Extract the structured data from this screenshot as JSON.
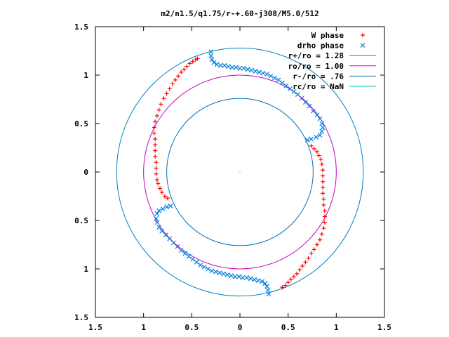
{
  "chart_data": {
    "type": "scatter",
    "title": "m2/n1.5/q1.75/r-+.60-j308/M5.0/512",
    "xlabel": "",
    "ylabel": "",
    "xlim": [
      -1.5,
      1.5
    ],
    "ylim": [
      -1.5,
      1.5
    ],
    "xticks": [
      -1.5,
      -1,
      -0.5,
      0,
      0.5,
      1,
      1.5
    ],
    "xtick_labels": [
      "1.5",
      "1",
      "0.5",
      "0",
      "0.5",
      "1",
      "1.5"
    ],
    "yticks": [
      1.5,
      1,
      0.5,
      0,
      -0.5,
      -1,
      -1.5
    ],
    "ytick_labels": [
      "1.5",
      "1",
      "0.5",
      "0",
      "0.5",
      "1",
      "1.5"
    ],
    "grid": false,
    "legend_position": "top-right",
    "legend": [
      {
        "label": "W phase",
        "kind": "plus",
        "color": "#ff0000"
      },
      {
        "label": "drho phase",
        "kind": "cross",
        "color": "#0080e0"
      },
      {
        "label": "r+/ro = 1.28",
        "kind": "line",
        "color": "#0080c0"
      },
      {
        "label": "ro/ro = 1.00",
        "kind": "line",
        "color": "#c000c0"
      },
      {
        "label": "r-/ro = .76",
        "kind": "line",
        "color": "#0070c0"
      },
      {
        "label": "rc/ro = NaN",
        "kind": "line",
        "color": "#00c0c0"
      }
    ],
    "circles": [
      {
        "name": "r+/ro = 1.28",
        "radius": 1.28,
        "color": "#0080c0"
      },
      {
        "name": "ro/ro = 1.00",
        "radius": 1.0,
        "color": "#c000c0"
      },
      {
        "name": "r-/ro = .76",
        "radius": 0.76,
        "color": "#0070c0"
      }
    ],
    "series": [
      {
        "name": "W phase",
        "color": "#ff0000",
        "marker": "plus",
        "points": [
          [
            -0.44,
            1.17
          ],
          [
            -0.46,
            1.16
          ],
          [
            -0.49,
            1.14
          ],
          [
            -0.52,
            1.12
          ],
          [
            -0.55,
            1.09
          ],
          [
            -0.58,
            1.06
          ],
          [
            -0.61,
            1.03
          ],
          [
            -0.64,
            0.99
          ],
          [
            -0.67,
            0.95
          ],
          [
            -0.7,
            0.91
          ],
          [
            -0.73,
            0.86
          ],
          [
            -0.76,
            0.81
          ],
          [
            -0.79,
            0.76
          ],
          [
            -0.82,
            0.7
          ],
          [
            -0.84,
            0.64
          ],
          [
            -0.86,
            0.58
          ],
          [
            -0.88,
            0.52
          ],
          [
            -0.89,
            0.46
          ],
          [
            -0.89,
            0.4
          ],
          [
            -0.88,
            0.34
          ],
          [
            -0.88,
            0.28
          ],
          [
            -0.88,
            0.22
          ],
          [
            -0.88,
            0.16
          ],
          [
            -0.87,
            0.1
          ],
          [
            -0.87,
            0.04
          ],
          [
            -0.87,
            -0.02
          ],
          [
            -0.86,
            -0.08
          ],
          [
            -0.85,
            -0.12
          ],
          [
            -0.83,
            -0.17
          ],
          [
            -0.81,
            -0.21
          ],
          [
            -0.78,
            -0.25
          ],
          [
            -0.75,
            -0.27
          ],
          [
            0.44,
            -1.19
          ],
          [
            0.47,
            -1.17
          ],
          [
            0.5,
            -1.14
          ],
          [
            0.53,
            -1.11
          ],
          [
            0.56,
            -1.08
          ],
          [
            0.59,
            -1.05
          ],
          [
            0.62,
            -1.01
          ],
          [
            0.65,
            -0.97
          ],
          [
            0.68,
            -0.93
          ],
          [
            0.71,
            -0.89
          ],
          [
            0.74,
            -0.84
          ],
          [
            0.77,
            -0.8
          ],
          [
            0.8,
            -0.75
          ],
          [
            0.83,
            -0.7
          ],
          [
            0.85,
            -0.64
          ],
          [
            0.87,
            -0.58
          ],
          [
            0.88,
            -0.52
          ],
          [
            0.88,
            -0.46
          ],
          [
            0.88,
            -0.4
          ],
          [
            0.87,
            -0.34
          ],
          [
            0.87,
            -0.28
          ],
          [
            0.86,
            -0.22
          ],
          [
            0.86,
            -0.16
          ],
          [
            0.86,
            -0.1
          ],
          [
            0.86,
            -0.04
          ],
          [
            0.86,
            0.02
          ],
          [
            0.85,
            0.08
          ],
          [
            0.84,
            0.13
          ],
          [
            0.82,
            0.17
          ],
          [
            0.8,
            0.21
          ],
          [
            0.77,
            0.24
          ],
          [
            0.74,
            0.27
          ]
        ]
      },
      {
        "name": "drho phase",
        "color": "#0080e0",
        "marker": "cross",
        "points": [
          [
            -0.3,
            1.24
          ],
          [
            -0.3,
            1.2
          ],
          [
            -0.29,
            1.16
          ],
          [
            -0.27,
            1.13
          ],
          [
            -0.24,
            1.11
          ],
          [
            -0.2,
            1.1
          ],
          [
            -0.16,
            1.1
          ],
          [
            -0.12,
            1.09
          ],
          [
            -0.08,
            1.08
          ],
          [
            -0.04,
            1.08
          ],
          [
            0.0,
            1.07
          ],
          [
            0.04,
            1.07
          ],
          [
            0.08,
            1.06
          ],
          [
            0.12,
            1.05
          ],
          [
            0.16,
            1.04
          ],
          [
            0.2,
            1.03
          ],
          [
            0.24,
            1.02
          ],
          [
            0.28,
            1.01
          ],
          [
            0.32,
            0.99
          ],
          [
            0.36,
            0.97
          ],
          [
            0.4,
            0.95
          ],
          [
            0.44,
            0.92
          ],
          [
            0.48,
            0.89
          ],
          [
            0.52,
            0.86
          ],
          [
            0.56,
            0.83
          ],
          [
            0.6,
            0.8
          ],
          [
            0.64,
            0.76
          ],
          [
            0.68,
            0.72
          ],
          [
            0.72,
            0.68
          ],
          [
            0.76,
            0.63
          ],
          [
            0.8,
            0.59
          ],
          [
            0.83,
            0.55
          ],
          [
            0.85,
            0.5
          ],
          [
            0.86,
            0.46
          ],
          [
            0.85,
            0.42
          ],
          [
            0.83,
            0.38
          ],
          [
            0.79,
            0.36
          ],
          [
            0.74,
            0.34
          ],
          [
            0.7,
            0.33
          ],
          [
            0.3,
            -1.26
          ],
          [
            0.29,
            -1.22
          ],
          [
            0.28,
            -1.18
          ],
          [
            0.26,
            -1.15
          ],
          [
            0.23,
            -1.13
          ],
          [
            0.19,
            -1.12
          ],
          [
            0.15,
            -1.11
          ],
          [
            0.11,
            -1.1
          ],
          [
            0.07,
            -1.09
          ],
          [
            0.03,
            -1.09
          ],
          [
            -0.01,
            -1.08
          ],
          [
            -0.05,
            -1.08
          ],
          [
            -0.09,
            -1.07
          ],
          [
            -0.13,
            -1.06
          ],
          [
            -0.17,
            -1.05
          ],
          [
            -0.21,
            -1.04
          ],
          [
            -0.25,
            -1.03
          ],
          [
            -0.29,
            -1.02
          ],
          [
            -0.33,
            -1.0
          ],
          [
            -0.37,
            -0.98
          ],
          [
            -0.41,
            -0.96
          ],
          [
            -0.45,
            -0.93
          ],
          [
            -0.49,
            -0.9
          ],
          [
            -0.53,
            -0.87
          ],
          [
            -0.57,
            -0.84
          ],
          [
            -0.61,
            -0.81
          ],
          [
            -0.65,
            -0.77
          ],
          [
            -0.69,
            -0.73
          ],
          [
            -0.73,
            -0.69
          ],
          [
            -0.77,
            -0.65
          ],
          [
            -0.81,
            -0.61
          ],
          [
            -0.84,
            -0.57
          ],
          [
            -0.86,
            -0.52
          ],
          [
            -0.87,
            -0.48
          ],
          [
            -0.86,
            -0.43
          ],
          [
            -0.84,
            -0.4
          ],
          [
            -0.8,
            -0.38
          ],
          [
            -0.76,
            -0.36
          ],
          [
            -0.72,
            -0.35
          ]
        ]
      }
    ]
  }
}
